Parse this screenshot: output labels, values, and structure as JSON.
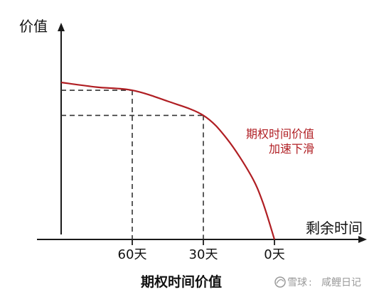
{
  "chart_data": {
    "type": "line",
    "title": "期权时间价值",
    "xlabel": "剩余时间",
    "ylabel": "价值",
    "x_ticks": [
      "60天",
      "30天",
      "0天"
    ],
    "x_tick_values": [
      60,
      30,
      0
    ],
    "x_range": [
      90,
      0
    ],
    "y_range": [
      0,
      1
    ],
    "grid": false,
    "series": [
      {
        "color": "#b01e23",
        "x": [
          90,
          75,
          60,
          45,
          30,
          20,
          10,
          5,
          0
        ],
        "y": [
          1.0,
          0.97,
          0.95,
          0.88,
          0.79,
          0.64,
          0.41,
          0.24,
          0.0
        ]
      }
    ],
    "reference_points": [
      {
        "x": 60,
        "y": 0.95
      },
      {
        "x": 30,
        "y": 0.79
      }
    ],
    "annotation": [
      "期权时间价值",
      "加速下滑"
    ]
  },
  "watermark": {
    "brand": "雪球",
    "author": "咸鲤日记"
  }
}
